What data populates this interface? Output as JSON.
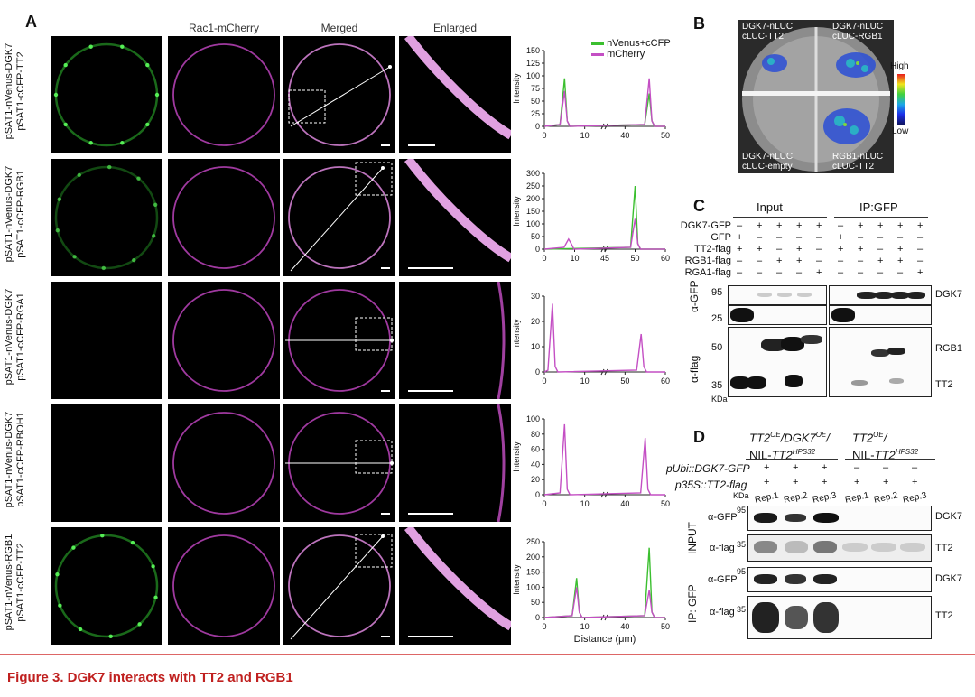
{
  "panel_a": {
    "letter": "A",
    "col_headers": [
      "Rac1-mCherry",
      "Merged",
      "Enlarged"
    ],
    "rows": [
      {
        "l1": "pSAT1-nVenus-DGK7",
        "l2": "pSAT1-cCFP-TT2"
      },
      {
        "l1": "pSAT1-nVenus-DGK7",
        "l2": "pSAT1-cCFP-RGB1"
      },
      {
        "l1": "pSAT1-nVenus-DGK7",
        "l2": "pSAT1-cCFP-RGA1"
      },
      {
        "l1": "pSAT1-nVenus-DGK7",
        "l2": "pSAT1-cCFP-RBOH1"
      },
      {
        "l1": "pSAT1-nVenus-RGB1",
        "l2": "pSAT1-cCFP-TT2"
      }
    ],
    "legend": {
      "green": "nVenus+cCFP",
      "magenta": "mCherry",
      "green_color": "#3bbf2f",
      "magenta_color": "#c44fc4"
    },
    "ylabel": "Intensity",
    "xlabel": "Distance (μm)"
  },
  "chart_data": [
    {
      "type": "line",
      "ylabel": "Intensity",
      "yticks": [
        0,
        25,
        50,
        75,
        100,
        125,
        150
      ],
      "xticks": [
        "0",
        "10",
        "40",
        "50"
      ],
      "series": [
        {
          "name": "nVenus+cCFP",
          "peaks": [
            [
              5,
              95
            ],
            [
              46,
              65
            ]
          ]
        },
        {
          "name": "mCherry",
          "peaks": [
            [
              5,
              70
            ],
            [
              46,
              95
            ]
          ]
        }
      ]
    },
    {
      "type": "line",
      "ylabel": "Intensity",
      "yticks": [
        0,
        50,
        100,
        150,
        200,
        250,
        300
      ],
      "xticks": [
        "0",
        "10",
        "45",
        "50",
        "60"
      ],
      "series": [
        {
          "name": "nVenus+cCFP",
          "peaks": [
            [
              50,
              250
            ]
          ]
        },
        {
          "name": "mCherry",
          "peaks": [
            [
              8,
              40
            ],
            [
              50,
              120
            ]
          ]
        }
      ]
    },
    {
      "type": "line",
      "ylabel": "Intensity",
      "yticks": [
        0,
        10,
        20,
        30
      ],
      "xticks": [
        "0",
        "10",
        "50",
        "60"
      ],
      "series": [
        {
          "name": "mCherry",
          "peaks": [
            [
              2,
              27
            ],
            [
              54,
              15
            ]
          ]
        }
      ]
    },
    {
      "type": "line",
      "ylabel": "Intensity",
      "yticks": [
        0,
        20,
        40,
        60,
        80,
        100
      ],
      "xticks": [
        "0",
        "10",
        "40",
        "50"
      ],
      "series": [
        {
          "name": "mCherry",
          "peaks": [
            [
              5,
              93
            ],
            [
              45,
              75
            ]
          ]
        }
      ]
    },
    {
      "type": "line",
      "ylabel": "Intensity",
      "xlabel": "Distance (μm)",
      "yticks": [
        0,
        50,
        100,
        150,
        200,
        250
      ],
      "xticks": [
        "0",
        "10",
        "40",
        "50"
      ],
      "series": [
        {
          "name": "nVenus+cCFP",
          "peaks": [
            [
              8,
              130
            ],
            [
              46,
              230
            ]
          ]
        },
        {
          "name": "mCherry",
          "peaks": [
            [
              8,
              100
            ],
            [
              46,
              90
            ]
          ]
        }
      ]
    }
  ],
  "panel_b": {
    "letter": "B",
    "tl1": "DGK7-nLUC",
    "tl2": "cLUC-TT2",
    "tr1": "DGK7-nLUC",
    "tr2": "cLUC-RGB1",
    "bl1": "DGK7-nLUC",
    "bl2": "cLUC-empty",
    "br1": "RGB1-nLUC",
    "br2": "cLUC-TT2",
    "high": "High",
    "low": "Low"
  },
  "panel_c": {
    "letter": "C",
    "input": "Input",
    "ip": "IP:GFP",
    "rows": [
      {
        "name": "DGK7-GFP",
        "signs": [
          "–",
          "+",
          "+",
          "+",
          "+",
          "–",
          "+",
          "+",
          "+",
          "+"
        ]
      },
      {
        "name": "GFP",
        "signs": [
          "+",
          "–",
          "–",
          "–",
          "–",
          "+",
          "–",
          "–",
          "–",
          "–"
        ]
      },
      {
        "name": "TT2-flag",
        "signs": [
          "+",
          "+",
          "–",
          "+",
          "–",
          "+",
          "+",
          "–",
          "+",
          "–"
        ]
      },
      {
        "name": "RGB1-flag",
        "signs": [
          "–",
          "–",
          "+",
          "+",
          "–",
          "–",
          "–",
          "+",
          "+",
          "–"
        ]
      },
      {
        "name": "RGA1-flag",
        "signs": [
          "–",
          "–",
          "–",
          "–",
          "+",
          "–",
          "–",
          "–",
          "–",
          "+"
        ]
      }
    ],
    "agfp": "α-GFP",
    "aflag": "α-flag",
    "mw95": "95",
    "mw25": "25",
    "mw50": "50",
    "mw35": "35",
    "kda": "KDa",
    "dgk7": "DGK7",
    "rgb1": "RGB1",
    "tt2": "TT2"
  },
  "panel_d": {
    "letter": "D",
    "group1_a": "TT2",
    "group1_a_sup": "OE",
    "group1_b": "/DGK7",
    "group1_b_sup": "OE",
    "group1_c": "/",
    "group1_d": "NIL-",
    "group1_e": "TT2",
    "group1_e_sup": "HPS32",
    "group2_a": "TT2",
    "group2_a_sup": "OE",
    "group2_b": "/",
    "group2_d": "NIL-",
    "group2_e": "TT2",
    "group2_e_sup": "HPS32",
    "row1": "pUbi::DGK7-GFP",
    "row2": "p35S::TT2-flag",
    "row1_signs": [
      "+",
      "+",
      "+",
      "–",
      "–",
      "–"
    ],
    "row2_signs": [
      "+",
      "+",
      "+",
      "+",
      "+",
      "+"
    ],
    "reps": [
      "Rep.1",
      "Rep.2",
      "Rep.3",
      "Rep.1",
      "Rep.2",
      "Rep.3"
    ],
    "kda": "KDa",
    "input": "INPUT",
    "ip": "IP: GFP",
    "agfp": "α-GFP",
    "aflag": "α-flag",
    "mw95": "95",
    "mw35": "35",
    "dgk7": "DGK7",
    "tt2": "TT2"
  },
  "caption": "Figure 3.  DGK7 interacts with TT2 and RGB1"
}
